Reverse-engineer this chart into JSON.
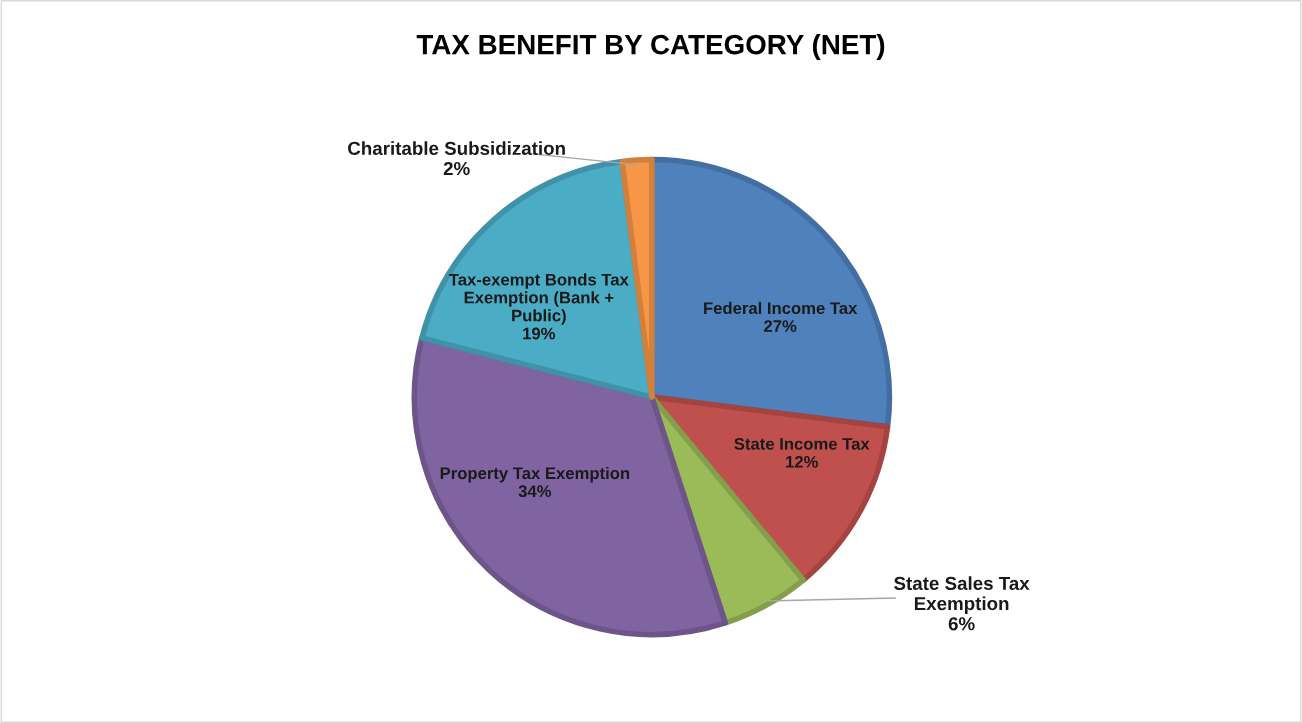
{
  "chart_data": {
    "type": "pie",
    "title": "TAX BENEFIT BY CATEGORY (NET)",
    "categories": [
      "Federal Income Tax",
      "State Income Tax",
      "State Sales Tax Exemption",
      "Property Tax Exemption",
      "Tax-exempt Bonds Tax Exemption (Bank + Public)",
      "Charitable Subsidization"
    ],
    "values": [
      27,
      12,
      6,
      34,
      19,
      2
    ],
    "value_labels": [
      "27%",
      "12%",
      "6%",
      "34%",
      "19%",
      "2%"
    ],
    "colors": [
      "#4f81bd",
      "#c0504d",
      "#9bbb59",
      "#8064a2",
      "#4bacc6",
      "#f79646"
    ],
    "legend": false
  }
}
